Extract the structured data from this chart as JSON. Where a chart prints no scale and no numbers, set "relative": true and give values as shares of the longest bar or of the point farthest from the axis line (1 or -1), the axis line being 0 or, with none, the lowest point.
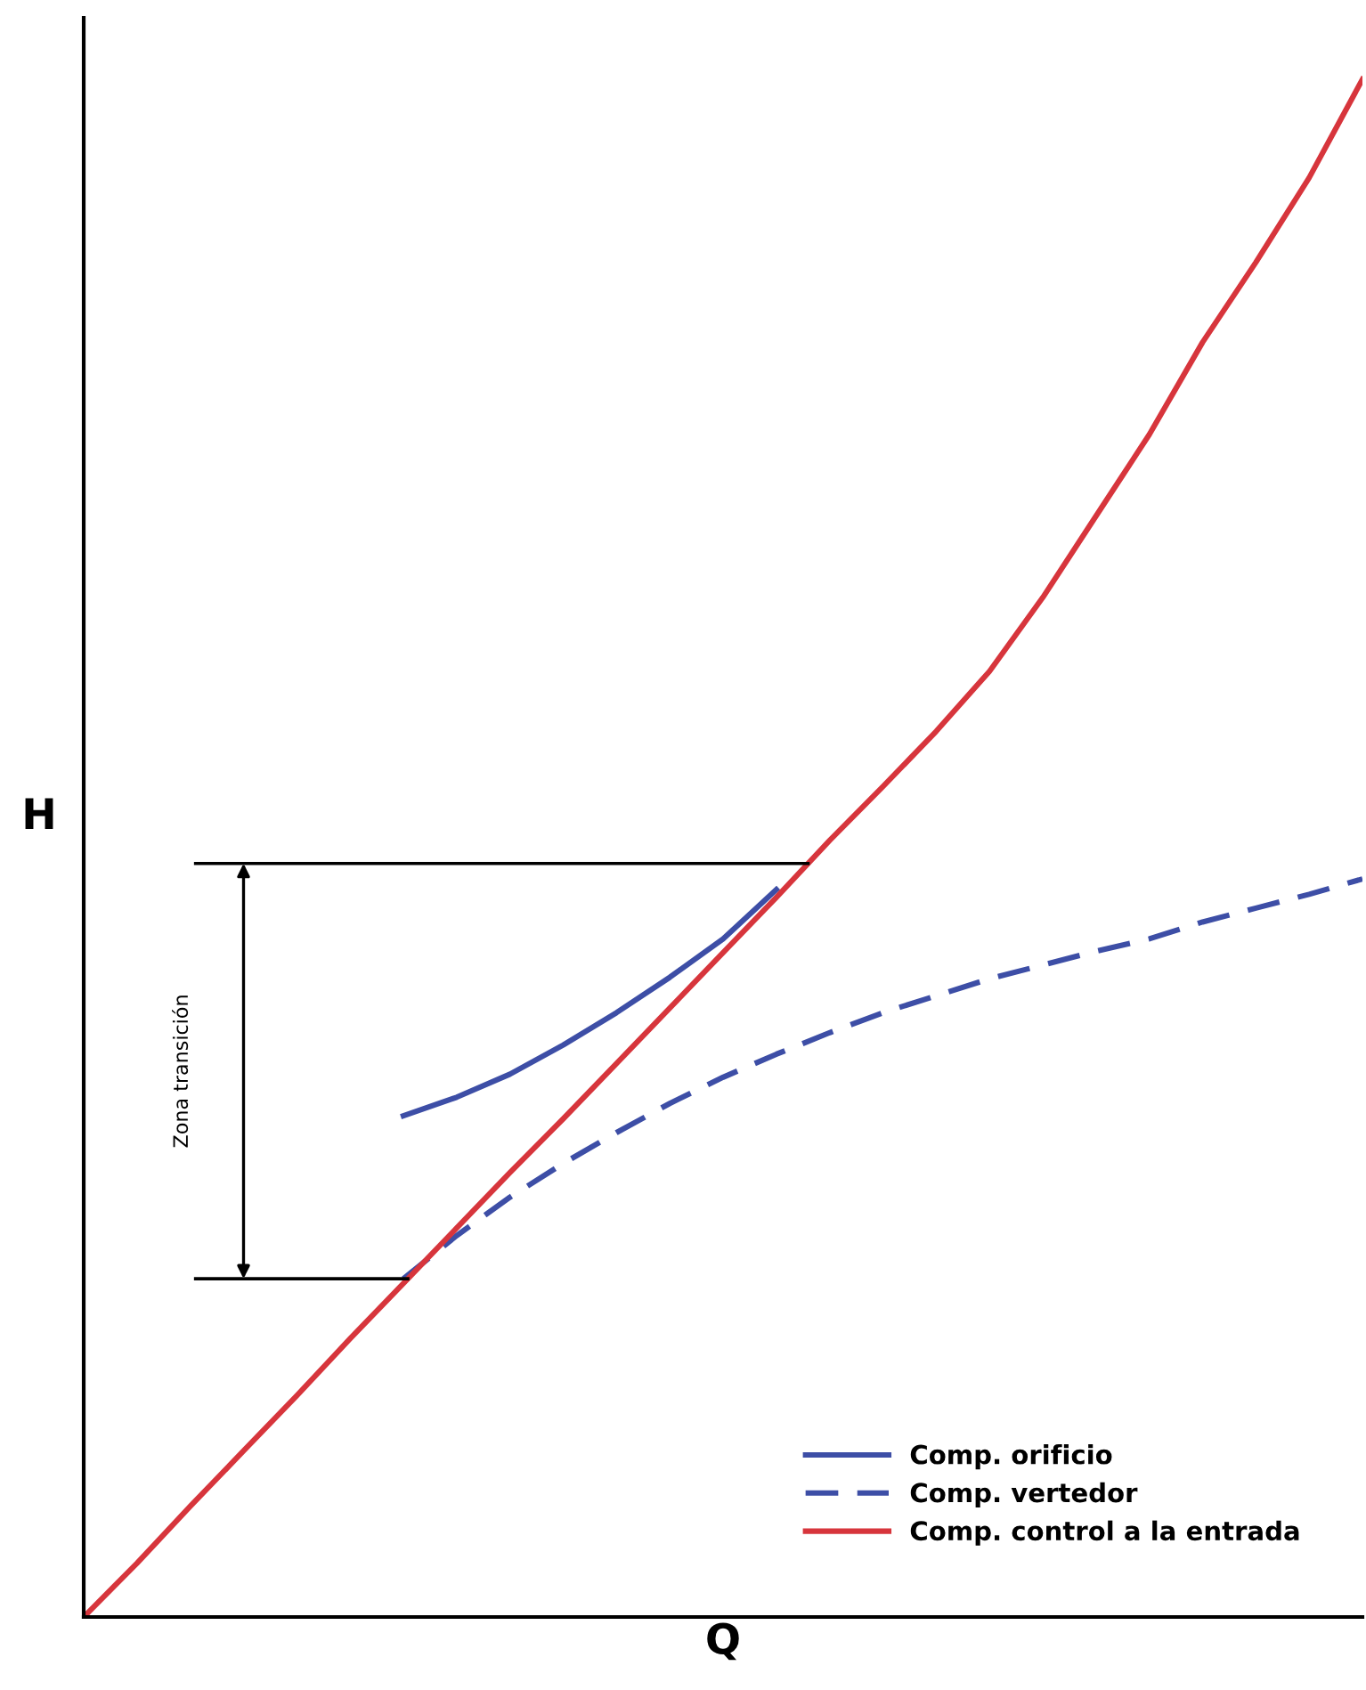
{
  "chart_data": {
    "type": "line",
    "relative": true,
    "xlabel": "Q",
    "ylabel": "H",
    "categories": [
      null,
      null,
      null,
      null,
      null,
      null,
      null,
      null,
      null,
      null,
      null,
      null,
      null,
      null,
      null,
      null,
      null,
      null,
      null,
      null,
      null,
      null,
      null,
      null,
      null
    ],
    "series": [
      {
        "name": "Comp. orificio",
        "color": "#3d4ea6",
        "line_style": "solid",
        "values": [
          null,
          null,
          null,
          null,
          null,
          null,
          0.326,
          0.338,
          0.353,
          0.372,
          0.393,
          0.416,
          0.441,
          0.473,
          null,
          null,
          null,
          null,
          null,
          null,
          null,
          null,
          null,
          null,
          null
        ]
      },
      {
        "name": "Comp. vertedor",
        "color": "#3d4ea6",
        "line_style": "dashed",
        "values": [
          null,
          null,
          null,
          null,
          null,
          null,
          0.22,
          0.248,
          0.273,
          0.295,
          0.315,
          0.334,
          0.351,
          0.366,
          0.38,
          0.393,
          0.404,
          0.415,
          0.424,
          0.433,
          0.441,
          0.452,
          0.461,
          0.47,
          0.48
        ]
      },
      {
        "name": "Comp. control a la entrada",
        "color": "#d7353c",
        "line_style": "solid",
        "values": [
          0,
          0.035,
          0.072,
          0.108,
          0.144,
          0.181,
          0.217,
          0.253,
          0.289,
          0.324,
          0.36,
          0.396,
          0.432,
          0.468,
          0.505,
          0.54,
          0.576,
          0.615,
          0.663,
          0.716,
          0.769,
          0.829,
          0.881,
          0.936,
          1
        ]
      }
    ],
    "ref_lines": [
      {
        "axis": "y",
        "value": 0.49,
        "color": "#000000"
      },
      {
        "axis": "y",
        "value": 0.22,
        "color": "#000000"
      }
    ],
    "annotations": [
      "Zona transición"
    ],
    "legend": "bottom right",
    "marker": "none"
  }
}
